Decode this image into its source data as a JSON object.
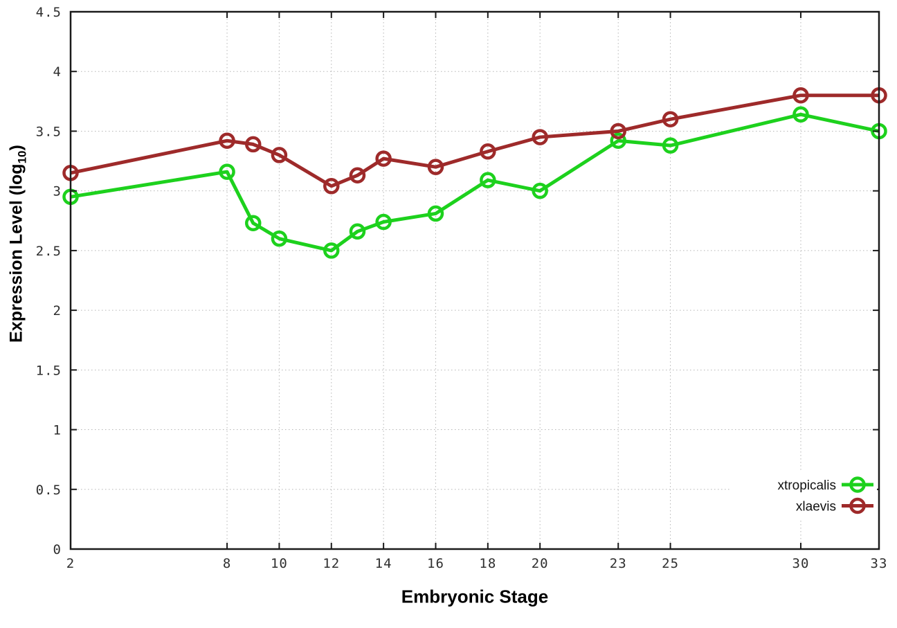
{
  "figure": {
    "background": "#ffffff",
    "plot_border_color": "#1a1a1a",
    "grid_color": "#b5b5b5"
  },
  "chart_data": {
    "type": "line",
    "title": "",
    "xlabel": "Embryonic Stage",
    "ylabel": "Expression Level (log10)",
    "ylabel_parts": {
      "main": "Expression Level (log",
      "sub": "10",
      "end": ")"
    },
    "x": [
      2,
      8,
      9,
      10,
      12,
      13,
      14,
      16,
      18,
      20,
      23,
      25,
      30,
      33
    ],
    "series": [
      {
        "name": "xtropicalis",
        "color": "#1dd11d",
        "marker": "open-circle",
        "values": [
          2.95,
          3.16,
          2.73,
          2.6,
          2.5,
          2.66,
          2.74,
          2.81,
          3.09,
          3.0,
          3.42,
          3.38,
          3.64,
          3.5
        ]
      },
      {
        "name": "xlaevis",
        "color": "#9e2a2a",
        "marker": "open-circle",
        "values": [
          3.15,
          3.42,
          3.39,
          3.3,
          3.04,
          3.13,
          3.27,
          3.2,
          3.33,
          3.45,
          3.5,
          3.6,
          3.8,
          3.8
        ]
      }
    ],
    "xlim": [
      2,
      33
    ],
    "ylim": [
      0,
      4.5
    ],
    "xticks": [
      2,
      8,
      10,
      12,
      14,
      16,
      18,
      20,
      23,
      25,
      30,
      33
    ],
    "xtick_labels": [
      "2",
      "8",
      "10",
      "12",
      "14",
      "16",
      "18",
      "20",
      "23",
      "25",
      "30",
      "33"
    ],
    "yticks": [
      0,
      0.5,
      1,
      1.5,
      2,
      2.5,
      3,
      3.5,
      4,
      4.5
    ],
    "ytick_labels": [
      "0",
      "0.5",
      "1",
      "1.5",
      "2",
      "2.5",
      "3",
      "3.5",
      "4",
      "4.5"
    ],
    "grid": true,
    "grid_style": "dotted",
    "legend_position": "inside-bottom-right",
    "legend_entries": [
      "xtropicalis",
      "xlaevis"
    ]
  }
}
